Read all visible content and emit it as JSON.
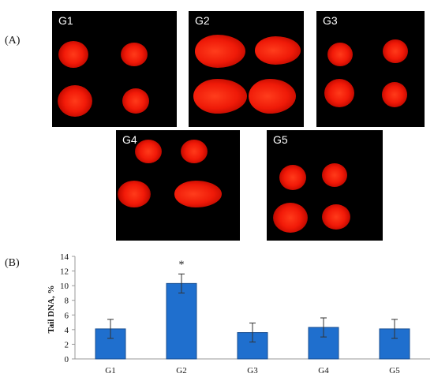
{
  "panel_a_label": "(A)",
  "panel_b_label": "(B)",
  "comet_images": [
    {
      "label": "G1"
    },
    {
      "label": "G2"
    },
    {
      "label": "G3"
    },
    {
      "label": "G4"
    },
    {
      "label": "G5"
    }
  ],
  "colors": {
    "bar": "#1f6fce",
    "bar_edge": "#1a4f91",
    "spot": "#f21a08"
  },
  "chart_data": {
    "type": "bar",
    "title": "",
    "xlabel": "",
    "ylabel": "Tail DNA, %",
    "categories": [
      "G1",
      "G2",
      "G3",
      "G4",
      "G5"
    ],
    "values": [
      4.1,
      10.3,
      3.6,
      4.3,
      4.1
    ],
    "errors": [
      1.3,
      1.3,
      1.3,
      1.3,
      1.3
    ],
    "significance": [
      "",
      "*",
      "",
      "",
      ""
    ],
    "ylim": [
      0,
      14
    ],
    "yticks": [
      0,
      2,
      4,
      6,
      8,
      10,
      12,
      14
    ],
    "grid": false,
    "legend": "none"
  }
}
